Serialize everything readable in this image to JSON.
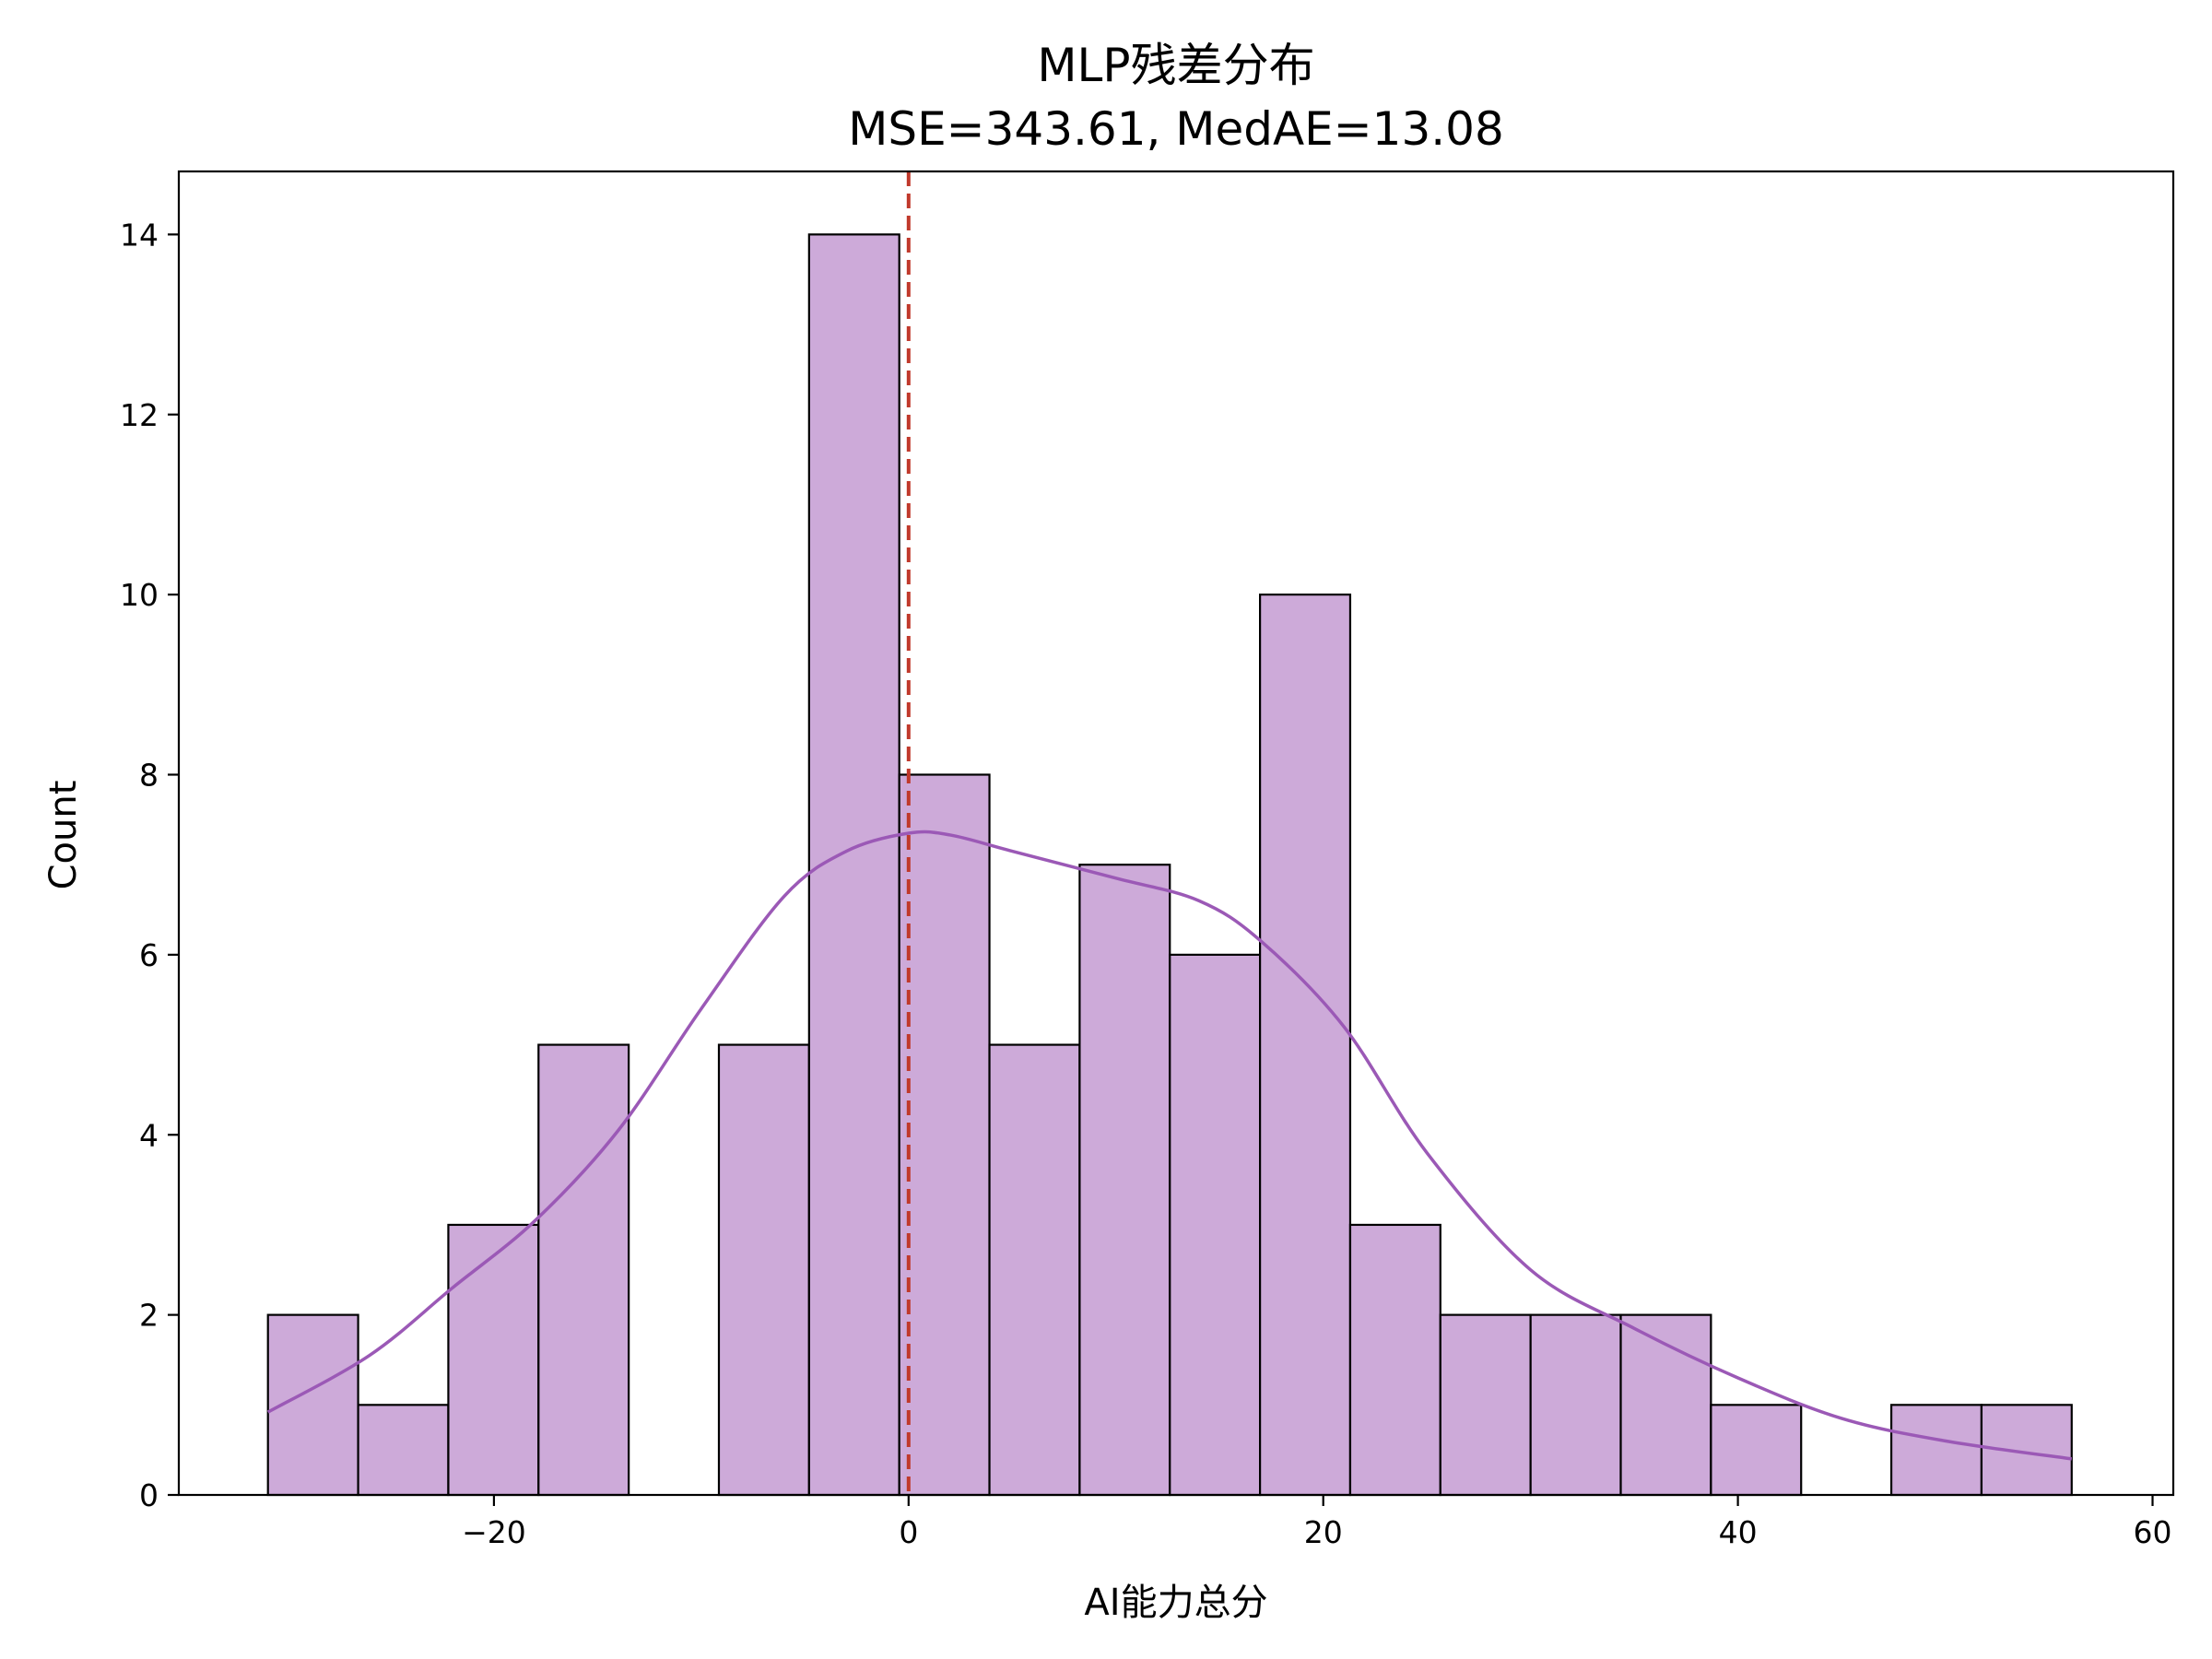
{
  "chart_data": {
    "type": "histogram",
    "title": "MLP残差分布",
    "subtitle": "MSE=343.61, MedAE=13.08",
    "xlabel": "AI能力总分",
    "ylabel": "Count",
    "xlim": [
      -35.2,
      61.0
    ],
    "ylim": [
      0,
      14.7
    ],
    "xticks": [
      -20,
      0,
      20,
      40,
      60
    ],
    "yticks": [
      0,
      2,
      4,
      6,
      8,
      10,
      12,
      14
    ],
    "bin_edges": [
      -30.9,
      -26.55,
      -22.2,
      -17.85,
      -13.5,
      -9.15,
      -4.8,
      -0.45,
      3.9,
      8.25,
      12.6,
      16.95,
      21.3,
      25.65,
      30.0,
      34.35,
      38.7,
      43.05,
      47.4,
      51.75,
      56.1
    ],
    "counts": [
      2,
      1,
      3,
      5,
      0,
      5,
      14,
      8,
      5,
      7,
      6,
      10,
      3,
      2,
      2,
      2,
      1,
      0,
      1,
      1
    ],
    "bar_color": "#cdaad9",
    "kde": {
      "color": "#9b59b6",
      "x": [
        -30.9,
        -26,
        -22,
        -18,
        -14,
        -10,
        -6,
        -3,
        0,
        2,
        5,
        10,
        14,
        17,
        21,
        25,
        30,
        35,
        40,
        45,
        50,
        56.1
      ],
      "y": [
        0.92,
        1.55,
        2.3,
        3.05,
        4.05,
        5.4,
        6.65,
        7.15,
        7.35,
        7.33,
        7.15,
        6.85,
        6.6,
        6.15,
        5.2,
        3.8,
        2.5,
        1.85,
        1.3,
        0.85,
        0.6,
        0.4
      ]
    },
    "reference_line": {
      "x": 0,
      "color": "#c0392b",
      "style": "dashed"
    },
    "grid": false
  }
}
